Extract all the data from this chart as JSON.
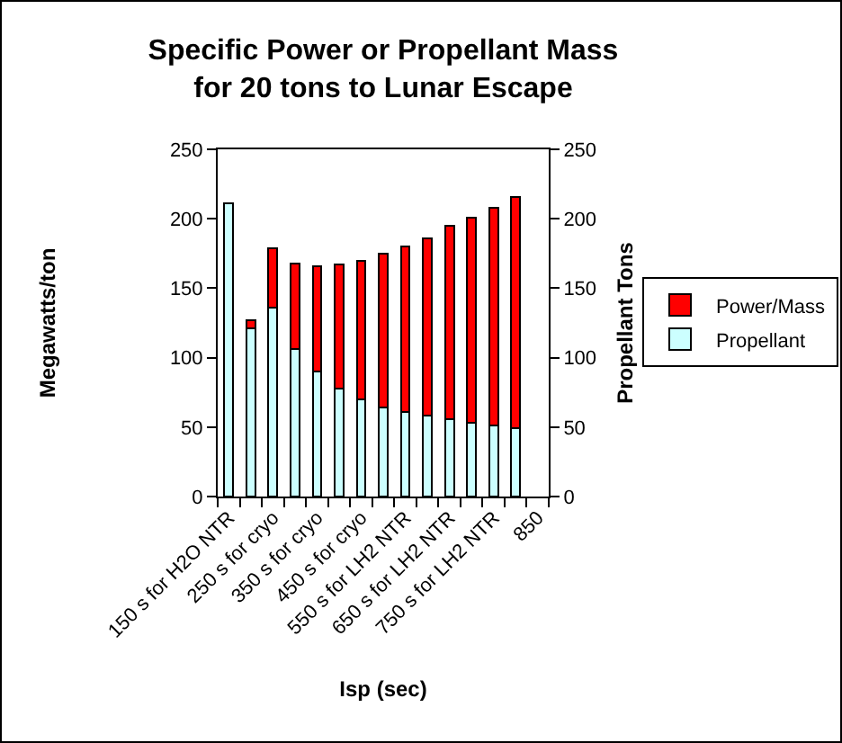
{
  "chart_data": {
    "type": "bar",
    "title": "Specific Power or Propellant Mass\nfor 20 tons to Lunar Escape",
    "xlabel": "Isp (sec)",
    "ylabel": "Megawatts/ton",
    "y2label": "Propellant Tons",
    "categories": [
      "150 s for H2O NTR",
      null,
      "250 s for cryo",
      null,
      "350 s for cryo",
      null,
      "450 s for cryo",
      null,
      "550 s for LH2 NTR",
      null,
      "650 s for LH2 NTR",
      null,
      "750 s for LH2 NTR",
      null,
      "850"
    ],
    "series": [
      {
        "name": "Propellant",
        "color": "#ccffff",
        "values": [
          211,
          121,
          136,
          106,
          90,
          78,
          70,
          64,
          61,
          58,
          56,
          53,
          51,
          49,
          null
        ]
      },
      {
        "name": "Power/Mass",
        "color": "#ff0000",
        "values": [
          null,
          6,
          43,
          62,
          76,
          89,
          100,
          111,
          119,
          128,
          139,
          148,
          157,
          167,
          null
        ]
      }
    ],
    "stacked": true,
    "ylim": [
      0,
      250
    ],
    "yticks": [
      0,
      50,
      100,
      150,
      200,
      250
    ],
    "y2lim": [
      0,
      250
    ],
    "y2ticks": [
      0,
      50,
      100,
      150,
      200,
      250
    ],
    "grid": false,
    "legend": "right"
  }
}
